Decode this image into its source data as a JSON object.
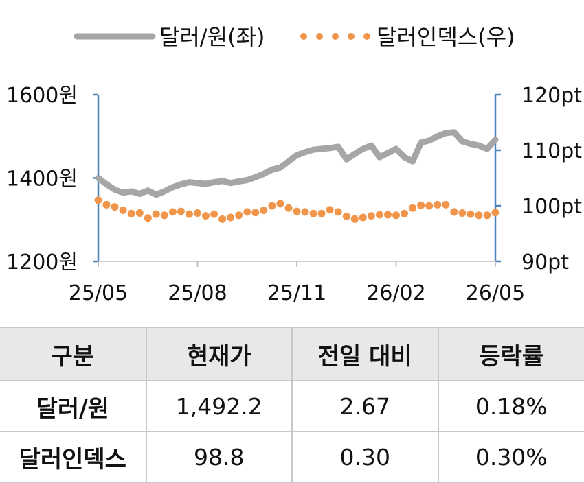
{
  "chart_data": {
    "type": "line",
    "legend_placement": "top",
    "grid": false,
    "series": [
      {
        "name": "달러/원(좌)",
        "axis": "left",
        "style": "solid",
        "color": "#a6a6a6",
        "x": [
          "25/05",
          "25/05",
          "25/05",
          "25/06",
          "25/06",
          "25/06",
          "25/06",
          "25/07",
          "25/07",
          "25/07",
          "25/07",
          "25/08",
          "25/08",
          "25/08",
          "25/08",
          "25/09",
          "25/09",
          "25/09",
          "25/09",
          "25/10",
          "25/10",
          "25/10",
          "25/10",
          "25/11",
          "25/11",
          "25/11",
          "25/11",
          "25/12",
          "25/12",
          "25/12",
          "25/12",
          "26/01",
          "26/01",
          "26/01",
          "26/01",
          "26/02",
          "26/02",
          "26/02",
          "26/02",
          "26/03",
          "26/03",
          "26/03",
          "26/03",
          "26/04",
          "26/04",
          "26/04",
          "26/04",
          "26/05",
          "26/05"
        ],
        "values": [
          1400,
          1385,
          1372,
          1365,
          1368,
          1362,
          1370,
          1360,
          1368,
          1378,
          1385,
          1390,
          1388,
          1386,
          1390,
          1393,
          1388,
          1392,
          1395,
          1402,
          1410,
          1420,
          1425,
          1440,
          1455,
          1462,
          1468,
          1470,
          1472,
          1475,
          1445,
          1458,
          1470,
          1478,
          1450,
          1460,
          1470,
          1450,
          1440,
          1485,
          1490,
          1500,
          1508,
          1510,
          1488,
          1482,
          1478,
          1470,
          1492
        ]
      },
      {
        "name": "달러인덱스(우)",
        "axis": "right",
        "style": "dotted",
        "color": "#f0954a",
        "x": [
          "25/05",
          "25/05",
          "25/05",
          "25/06",
          "25/06",
          "25/06",
          "25/06",
          "25/07",
          "25/07",
          "25/07",
          "25/07",
          "25/08",
          "25/08",
          "25/08",
          "25/08",
          "25/09",
          "25/09",
          "25/09",
          "25/09",
          "25/10",
          "25/10",
          "25/10",
          "25/10",
          "25/11",
          "25/11",
          "25/11",
          "25/11",
          "25/12",
          "25/12",
          "25/12",
          "25/12",
          "26/01",
          "26/01",
          "26/01",
          "26/01",
          "26/02",
          "26/02",
          "26/02",
          "26/02",
          "26/03",
          "26/03",
          "26/03",
          "26/03",
          "26/04",
          "26/04",
          "26/04",
          "26/04",
          "26/05",
          "26/05"
        ],
        "values": [
          101.0,
          100.2,
          99.8,
          99.2,
          98.6,
          98.7,
          97.8,
          98.5,
          98.3,
          98.9,
          99.0,
          98.5,
          98.7,
          98.2,
          98.5,
          97.6,
          97.9,
          98.3,
          98.9,
          98.8,
          99.2,
          100.0,
          100.4,
          99.6,
          99.0,
          98.9,
          98.6,
          98.6,
          99.3,
          98.9,
          98.1,
          97.6,
          97.9,
          98.2,
          98.4,
          98.4,
          98.3,
          98.6,
          99.6,
          100.1,
          100.0,
          100.2,
          100.2,
          98.9,
          98.7,
          98.5,
          98.3,
          98.3,
          98.8
        ]
      }
    ],
    "x_ticks": [
      "25/05",
      "25/08",
      "25/11",
      "26/02",
      "26/05"
    ],
    "y_left": {
      "ylim": [
        1200,
        1600
      ],
      "ticks": [
        "1200원",
        "1400원",
        "1600원"
      ],
      "tick_values": [
        1200,
        1400,
        1600
      ]
    },
    "y_right": {
      "ylim": [
        90,
        120
      ],
      "ticks": [
        "90pt",
        "100pt",
        "110pt",
        "120pt"
      ],
      "tick_values": [
        90,
        100,
        110,
        120
      ]
    }
  },
  "table": {
    "headers": [
      "구분",
      "현재가",
      "전일 대비",
      "등락률"
    ],
    "rows": [
      [
        "달러/원",
        "1,492.2",
        "2.67",
        "0.18%"
      ],
      [
        "달러인덱스",
        "98.8",
        "0.30",
        "0.30%"
      ]
    ]
  }
}
